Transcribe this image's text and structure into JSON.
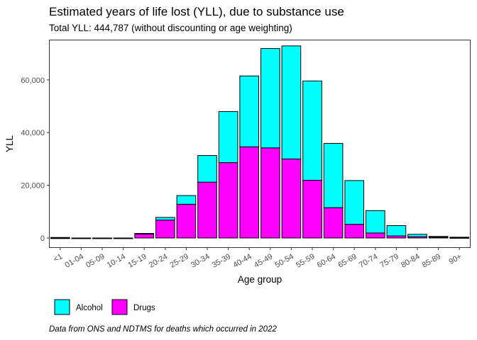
{
  "chart_data": {
    "type": "bar",
    "stacked": true,
    "title": "Estimated years of life lost (YLL), due to substance use",
    "subtitle": "Total YLL: 444,787 (without discounting or age weighting)",
    "xlabel": "Age group",
    "ylabel": "YLL",
    "ylim": [
      -3500,
      75000
    ],
    "yticks": [
      0,
      20000,
      40000,
      60000
    ],
    "ytick_labels": [
      "0",
      "20,000",
      "40,000",
      "60,000"
    ],
    "categories": [
      "<1",
      "01-04",
      "05-09",
      "10-14",
      "15-19",
      "20-24",
      "25-29",
      "30-34",
      "35-39",
      "40-44",
      "45-49",
      "50-54",
      "55-59",
      "60-64",
      "65-69",
      "70-74",
      "75-79",
      "80-84",
      "85-89",
      "90+"
    ],
    "series": [
      {
        "name": "Drugs",
        "color": "#ff00ff",
        "values": [
          0,
          0,
          0,
          0,
          1700,
          6800,
          12800,
          21200,
          28600,
          34600,
          34200,
          30000,
          21900,
          11500,
          5200,
          1900,
          800,
          500,
          300,
          100
        ]
      },
      {
        "name": "Alcohol",
        "color": "#00ffff",
        "values": [
          200,
          0,
          0,
          0,
          0,
          1000,
          3300,
          10100,
          19400,
          26900,
          37700,
          42900,
          37700,
          24400,
          16600,
          8500,
          3900,
          900,
          300,
          200
        ]
      }
    ],
    "legend": {
      "position": "bottom-left",
      "order": [
        "Alcohol",
        "Drugs"
      ]
    },
    "grid": false,
    "panel_border": true,
    "caption": "Data from ONS and NDTMS for deaths which occurred in 2022"
  }
}
